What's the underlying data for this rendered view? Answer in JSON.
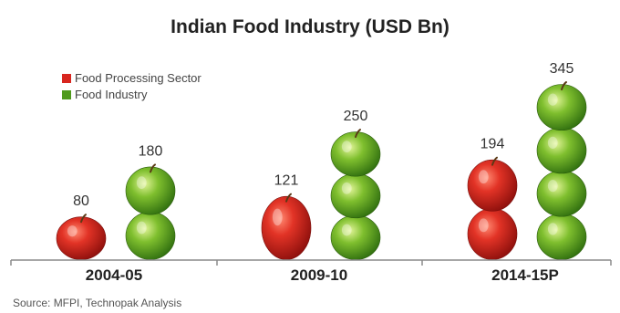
{
  "chart_data": {
    "type": "bar",
    "title": "Indian Food Industry (USD Bn)",
    "categories": [
      "2004-05",
      "2009-10",
      "2014-15P"
    ],
    "series": [
      {
        "name": "Food Processing Sector",
        "values": [
          80,
          121,
          194
        ],
        "color": "#d8261f",
        "icon": "red-apple"
      },
      {
        "name": "Food Industry",
        "values": [
          180,
          250,
          345
        ],
        "color": "#4f9a1c",
        "icon": "green-apple"
      }
    ],
    "data_labels": [
      [
        "80",
        "121",
        "194"
      ],
      [
        "180",
        "250",
        "345"
      ]
    ],
    "ylim": [
      0,
      360
    ],
    "xlabel": "",
    "ylabel": "",
    "grid": false,
    "legend_position": "top-left",
    "source": "Source: MFPI, Technopak Analysis"
  }
}
